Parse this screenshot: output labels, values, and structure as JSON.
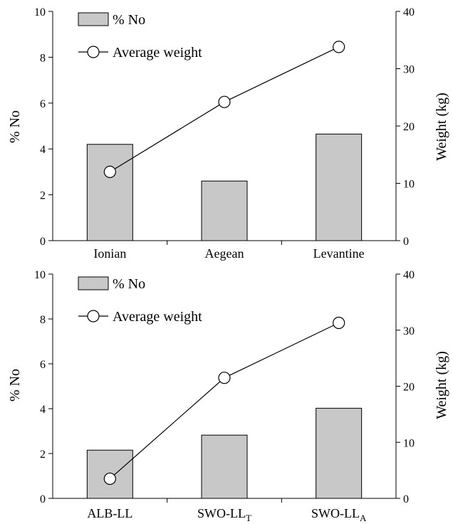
{
  "chart_data": [
    {
      "type": "bar",
      "categories": [
        "Ionian",
        "Aegean",
        "Levantine"
      ],
      "ylabel": "% No",
      "y2label": "Weight (kg)",
      "ylim": [
        0,
        10
      ],
      "y2lim": [
        0,
        40
      ],
      "yticks": [
        "0",
        "2",
        "4",
        "6",
        "8",
        "10"
      ],
      "y2ticks": [
        "0",
        "10",
        "20",
        "30",
        "40"
      ],
      "series": [
        {
          "name": "% No",
          "type": "bar",
          "axis": "left",
          "values": [
            4.2,
            2.6,
            4.65
          ]
        },
        {
          "name": "Average weight",
          "type": "line",
          "axis": "right",
          "values": [
            12.0,
            24.2,
            33.8
          ]
        }
      ],
      "legend": "top-left",
      "grid": false
    },
    {
      "type": "bar",
      "categories": [
        {
          "main": "ALB-LL",
          "sub": ""
        },
        {
          "main": "SWO-LL",
          "sub": "T"
        },
        {
          "main": "SWO-LL",
          "sub": "A"
        }
      ],
      "ylabel": "% No",
      "y2label": "Weight (kg)",
      "ylim": [
        0,
        10
      ],
      "y2lim": [
        0,
        40
      ],
      "yticks": [
        "0",
        "2",
        "4",
        "6",
        "8",
        "10"
      ],
      "y2ticks": [
        "0",
        "10",
        "20",
        "30",
        "40"
      ],
      "series": [
        {
          "name": "% No",
          "type": "bar",
          "axis": "left",
          "values": [
            2.15,
            2.82,
            4.02
          ]
        },
        {
          "name": "Average weight",
          "type": "line",
          "axis": "right",
          "values": [
            3.5,
            21.5,
            31.3
          ]
        }
      ],
      "legend": "top-left",
      "grid": false
    }
  ]
}
